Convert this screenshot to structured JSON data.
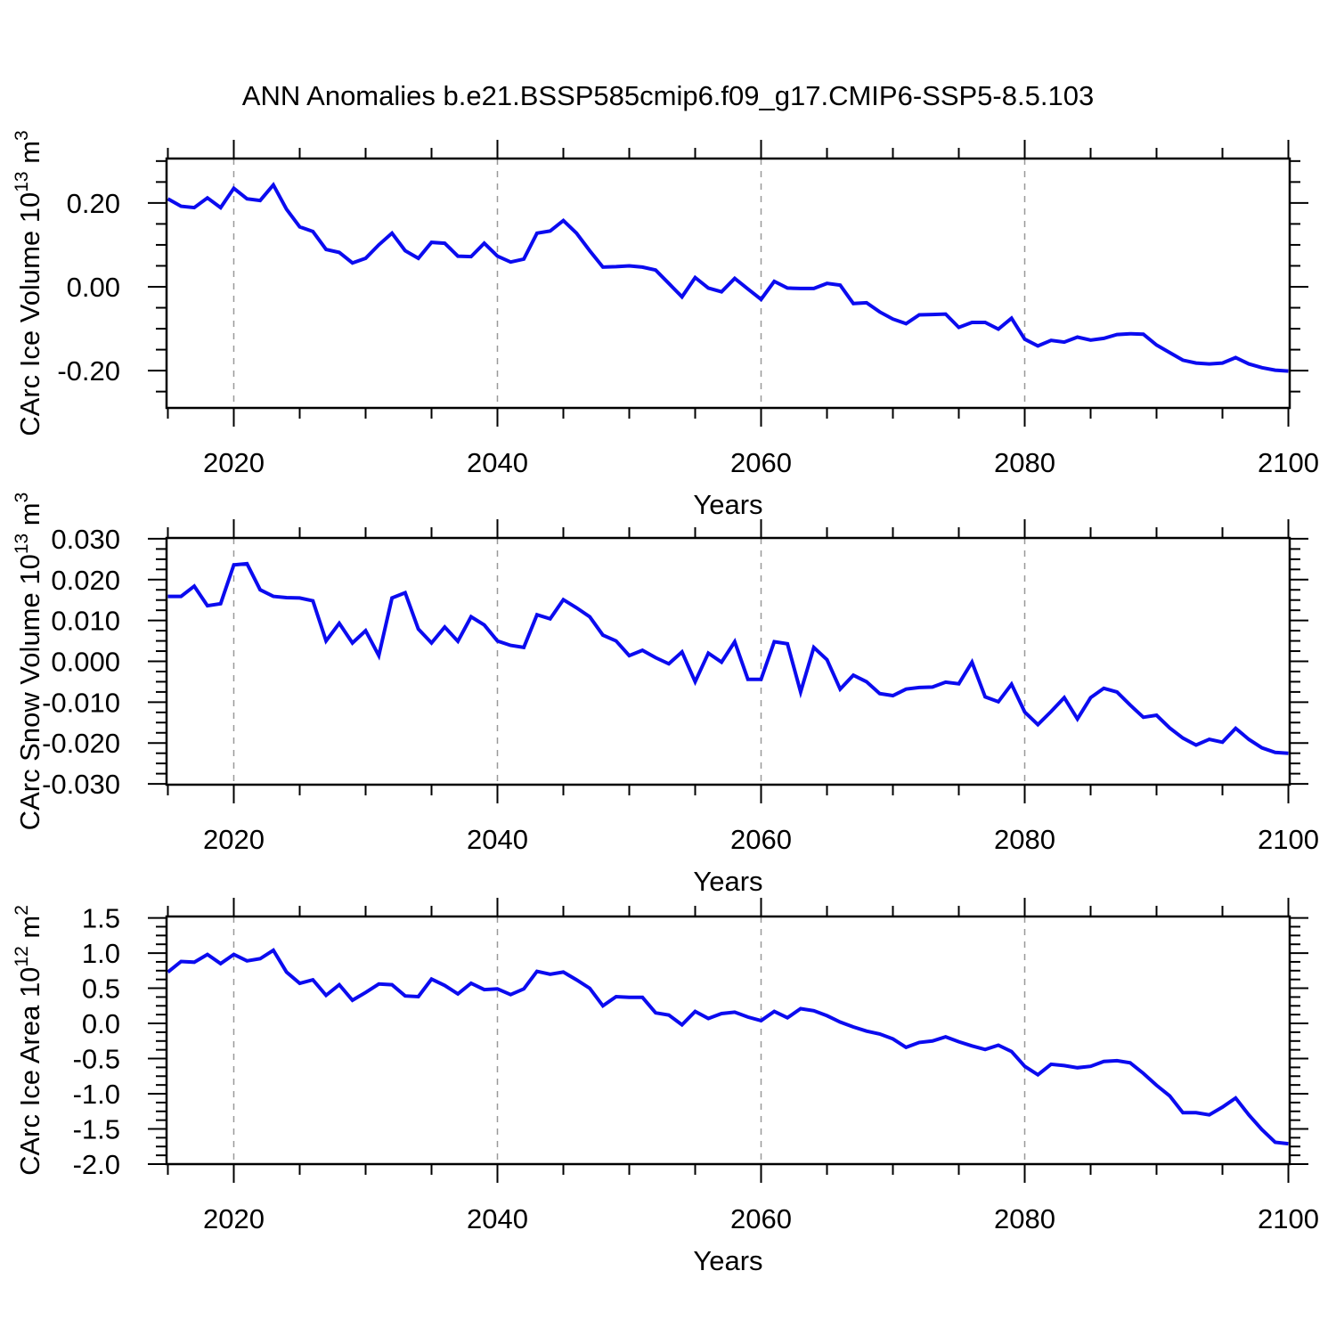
{
  "title": "ANN Anomalies b.e21.BSSP585cmip6.f09_g17.CMIP6-SSP5-8.5.103",
  "colors": {
    "line": "#0b0bef",
    "grid": "#999999",
    "axis": "#000000",
    "background": "#ffffff",
    "text": "#000000"
  },
  "chart_data": {
    "type": "line",
    "title": "ANN Anomalies b.e21.BSSP585cmip6.f09_g17.CMIP6-SSP5-8.5.103",
    "x": {
      "label": "Years",
      "range": [
        2014.9,
        2100.1
      ],
      "major_ticks": [
        2020,
        2040,
        2060,
        2080,
        2100
      ],
      "major_tick_labels": [
        "2020",
        "2040",
        "2060",
        "2080",
        "2100"
      ],
      "minor_tick_step": 5,
      "gridline_years": [
        2020,
        2040,
        2060,
        2080
      ],
      "years": [
        2015,
        2016,
        2017,
        2018,
        2019,
        2020,
        2021,
        2022,
        2023,
        2024,
        2025,
        2026,
        2027,
        2028,
        2029,
        2030,
        2031,
        2032,
        2033,
        2034,
        2035,
        2036,
        2037,
        2038,
        2039,
        2040,
        2041,
        2042,
        2043,
        2044,
        2045,
        2046,
        2047,
        2048,
        2049,
        2050,
        2051,
        2052,
        2053,
        2054,
        2055,
        2056,
        2057,
        2058,
        2059,
        2060,
        2061,
        2062,
        2063,
        2064,
        2065,
        2066,
        2067,
        2068,
        2069,
        2070,
        2071,
        2072,
        2073,
        2074,
        2075,
        2076,
        2077,
        2078,
        2079,
        2080,
        2081,
        2082,
        2083,
        2084,
        2085,
        2086,
        2087,
        2088,
        2089,
        2090,
        2091,
        2092,
        2093,
        2094,
        2095,
        2096,
        2097,
        2098,
        2099,
        2100
      ]
    },
    "panels": [
      {
        "name": "CArc Ice Volume",
        "y_label_prefix": "CArc Ice Volume 10",
        "y_label_exp": "13",
        "y_label_suffix": " m",
        "y_label_suffix_exp": "3",
        "ylim": [
          -0.289,
          0.306
        ],
        "y_major_ticks": [
          {
            "value": 0.2,
            "label": "0.20"
          },
          {
            "value": 0.0,
            "label": "0.00"
          },
          {
            "value": -0.2,
            "label": "-0.20"
          }
        ],
        "y_minor_step": 0.05,
        "values": [
          0.21,
          0.192,
          0.189,
          0.212,
          0.189,
          0.235,
          0.21,
          0.206,
          0.243,
          0.185,
          0.143,
          0.132,
          0.089,
          0.082,
          0.057,
          0.068,
          0.1,
          0.128,
          0.086,
          0.068,
          0.106,
          0.104,
          0.073,
          0.072,
          0.104,
          0.073,
          0.059,
          0.066,
          0.128,
          0.133,
          0.158,
          0.128,
          0.086,
          0.047,
          0.048,
          0.05,
          0.047,
          0.04,
          0.008,
          -0.024,
          0.022,
          -0.003,
          -0.012,
          0.02,
          -0.005,
          -0.03,
          0.013,
          -0.003,
          -0.004,
          -0.004,
          0.008,
          0.004,
          -0.04,
          -0.038,
          -0.06,
          -0.077,
          -0.088,
          -0.067,
          -0.066,
          -0.065,
          -0.097,
          -0.085,
          -0.085,
          -0.101,
          -0.075,
          -0.125,
          -0.141,
          -0.128,
          -0.132,
          -0.12,
          -0.127,
          -0.123,
          -0.114,
          -0.112,
          -0.113,
          -0.139,
          -0.157,
          -0.175,
          -0.182,
          -0.184,
          -0.182,
          -0.169,
          -0.184,
          -0.193,
          -0.199,
          -0.201
        ]
      },
      {
        "name": "CArc Snow Volume",
        "y_label_prefix": "CArc Snow Volume 10",
        "y_label_exp": "13",
        "y_label_suffix": " m",
        "y_label_suffix_exp": "3",
        "ylim": [
          -0.0302,
          0.0302
        ],
        "y_major_ticks": [
          {
            "value": 0.03,
            "label": "0.030"
          },
          {
            "value": 0.02,
            "label": "0.020"
          },
          {
            "value": 0.01,
            "label": "0.010"
          },
          {
            "value": 0.0,
            "label": "0.000"
          },
          {
            "value": -0.01,
            "label": "-0.010"
          },
          {
            "value": -0.02,
            "label": "-0.020"
          },
          {
            "value": -0.03,
            "label": "-0.030"
          }
        ],
        "y_minor_step": 0.0025,
        "values": [
          0.0159,
          0.0159,
          0.0184,
          0.0136,
          0.0141,
          0.0236,
          0.0239,
          0.0175,
          0.0159,
          0.0156,
          0.0155,
          0.0148,
          0.005,
          0.0093,
          0.0045,
          0.0075,
          0.0014,
          0.0155,
          0.0168,
          0.0079,
          0.0045,
          0.0084,
          0.0049,
          0.0109,
          0.0089,
          0.005,
          0.0039,
          0.0034,
          0.0114,
          0.0104,
          0.0151,
          0.0131,
          0.0109,
          0.0064,
          0.005,
          0.0014,
          0.0027,
          0.0009,
          -0.0006,
          0.0023,
          -0.005,
          0.002,
          -0.0002,
          0.0048,
          -0.0044,
          -0.0044,
          0.0048,
          0.0043,
          -0.0075,
          0.0034,
          0.0004,
          -0.0068,
          -0.0034,
          -0.005,
          -0.0079,
          -0.0084,
          -0.0068,
          -0.0064,
          -0.0063,
          -0.0051,
          -0.0055,
          -0.0002,
          -0.0087,
          -0.0099,
          -0.0056,
          -0.0124,
          -0.0155,
          -0.0123,
          -0.0089,
          -0.0141,
          -0.0089,
          -0.0066,
          -0.0075,
          -0.0107,
          -0.0137,
          -0.0132,
          -0.0163,
          -0.0188,
          -0.0205,
          -0.0191,
          -0.0198,
          -0.0164,
          -0.0191,
          -0.0212,
          -0.0223,
          -0.0225
        ]
      },
      {
        "name": "CArc Ice Area",
        "y_label_prefix": "CArc Ice Area 10",
        "y_label_exp": "12",
        "y_label_suffix": " m",
        "y_label_suffix_exp": "2",
        "ylim": [
          -2.0,
          1.52
        ],
        "y_major_ticks": [
          {
            "value": 1.5,
            "label": "1.5"
          },
          {
            "value": 1.0,
            "label": "1.0"
          },
          {
            "value": 0.5,
            "label": "0.5"
          },
          {
            "value": 0.0,
            "label": "0.0"
          },
          {
            "value": -0.5,
            "label": "-0.5"
          },
          {
            "value": -1.0,
            "label": "-1.0"
          },
          {
            "value": -1.5,
            "label": "-1.5"
          },
          {
            "value": -2.0,
            "label": "-2.0"
          }
        ],
        "y_minor_step": 0.125,
        "values": [
          0.73,
          0.88,
          0.87,
          0.98,
          0.85,
          0.98,
          0.89,
          0.92,
          1.04,
          0.73,
          0.57,
          0.62,
          0.4,
          0.55,
          0.33,
          0.44,
          0.56,
          0.55,
          0.39,
          0.38,
          0.63,
          0.54,
          0.42,
          0.57,
          0.48,
          0.49,
          0.41,
          0.49,
          0.74,
          0.7,
          0.73,
          0.62,
          0.5,
          0.25,
          0.38,
          0.37,
          0.37,
          0.15,
          0.12,
          -0.02,
          0.17,
          0.07,
          0.14,
          0.16,
          0.09,
          0.04,
          0.17,
          0.08,
          0.21,
          0.18,
          0.11,
          0.02,
          -0.05,
          -0.11,
          -0.15,
          -0.22,
          -0.34,
          -0.27,
          -0.25,
          -0.19,
          -0.26,
          -0.32,
          -0.37,
          -0.31,
          -0.4,
          -0.61,
          -0.73,
          -0.58,
          -0.6,
          -0.63,
          -0.61,
          -0.54,
          -0.53,
          -0.56,
          -0.71,
          -0.88,
          -1.03,
          -1.27,
          -1.27,
          -1.3,
          -1.19,
          -1.06,
          -1.3,
          -1.51,
          -1.69,
          -1.71
        ]
      }
    ]
  }
}
